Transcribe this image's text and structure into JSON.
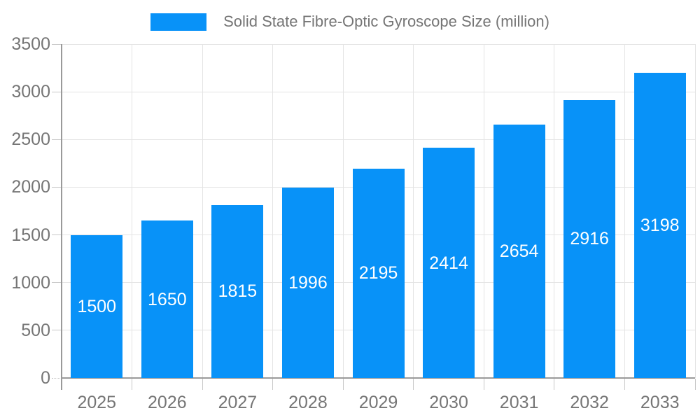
{
  "chart_data": {
    "type": "bar",
    "title": "Solid State Fibre-Optic Gyroscope Size (million)",
    "categories": [
      "2025",
      "2026",
      "2027",
      "2028",
      "2029",
      "2030",
      "2031",
      "2032",
      "2033"
    ],
    "values": [
      1500,
      1650,
      1815,
      1996,
      2195,
      2414,
      2654,
      2916,
      3198
    ],
    "xlabel": "",
    "ylabel": "",
    "ylim": [
      0,
      3500
    ],
    "yticks": [
      0,
      500,
      1000,
      1500,
      2000,
      2500,
      3000,
      3500
    ],
    "grid": true,
    "legend_position": "top",
    "value_labels_shown": true
  },
  "colors": {
    "bar": "#0892F8",
    "grid": "#e4e4e4",
    "axis": "#9a9a9a",
    "minor_tick": "#c8c8c8",
    "text": "#757575",
    "value_label": "#ffffff",
    "background": "#ffffff"
  }
}
